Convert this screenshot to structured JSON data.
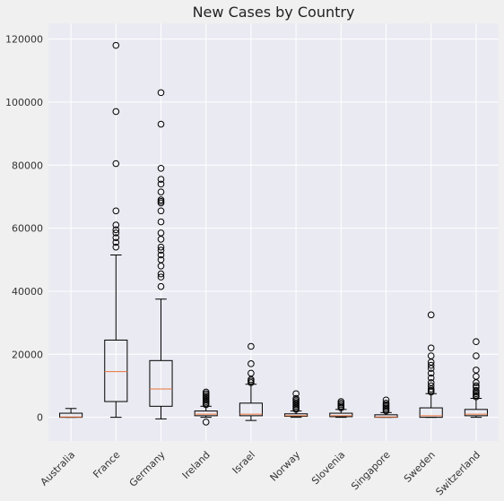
{
  "chart_data": {
    "type": "box",
    "title": "New Cases by Country",
    "xlabel": "",
    "ylabel": "",
    "ylim": [
      -7500,
      125000
    ],
    "yticks": [
      0,
      20000,
      40000,
      60000,
      80000,
      100000,
      120000
    ],
    "ytick_labels": [
      "0",
      "20000",
      "40000",
      "60000",
      "80000",
      "100000",
      "120000"
    ],
    "grid": true,
    "colors": {
      "background": "#eaeaf2",
      "figure": "#f0f0f0",
      "grid": "#ffffff",
      "box": "#000000",
      "median": "#e8743b"
    },
    "categories": [
      "Australia",
      "France",
      "Germany",
      "Ireland",
      "Israel",
      "Norway",
      "Slovenia",
      "Singapore",
      "Sweden",
      "Switzerland"
    ],
    "boxes": [
      {
        "name": "Australia",
        "whislo": 0,
        "q1": 0,
        "med": 100,
        "q3": 1300,
        "whishi": 2800,
        "fliers": []
      },
      {
        "name": "France",
        "whislo": 0,
        "q1": 5000,
        "med": 14500,
        "q3": 24500,
        "whishi": 51500,
        "fliers": [
          54000,
          55500,
          57000,
          58500,
          59500,
          61000,
          65500,
          80500,
          97000,
          118000
        ]
      },
      {
        "name": "Germany",
        "whislo": -500,
        "q1": 3500,
        "med": 9000,
        "q3": 18000,
        "whishi": 37500,
        "fliers": [
          41500,
          44500,
          45500,
          48000,
          50000,
          51500,
          53000,
          54000,
          56500,
          58500,
          62000,
          65500,
          68000,
          68500,
          69000,
          71500,
          74000,
          75500,
          79000,
          93000,
          103000
        ]
      },
      {
        "name": "Ireland",
        "whislo": 0,
        "q1": 500,
        "med": 1000,
        "q3": 2000,
        "whishi": 3500,
        "fliers": [
          -1500,
          4000,
          4500,
          5000,
          5500,
          6000,
          6500,
          7000,
          7500,
          8000
        ]
      },
      {
        "name": "Israel",
        "whislo": -1000,
        "q1": 500,
        "med": 1000,
        "q3": 4500,
        "whishi": 10500,
        "fliers": [
          11000,
          11500,
          12000,
          14000,
          17000,
          22500
        ]
      },
      {
        "name": "Norway",
        "whislo": 0,
        "q1": 300,
        "med": 500,
        "q3": 1100,
        "whishi": 2000,
        "fliers": [
          2500,
          3000,
          3500,
          4000,
          4500,
          5000,
          5500,
          6000,
          7500
        ]
      },
      {
        "name": "Slovenia",
        "whislo": 0,
        "q1": 200,
        "med": 500,
        "q3": 1300,
        "whishi": 2500,
        "fliers": [
          3000,
          3500,
          4000,
          4500,
          5000
        ]
      },
      {
        "name": "Singapore",
        "whislo": 0,
        "q1": 0,
        "med": 100,
        "q3": 800,
        "whishi": 1500,
        "fliers": [
          2000,
          2500,
          3000,
          3500,
          4000,
          4500,
          5500
        ]
      },
      {
        "name": "Sweden",
        "whislo": 0,
        "q1": 0,
        "med": 500,
        "q3": 3000,
        "whishi": 7500,
        "fliers": [
          8000,
          8500,
          9000,
          10000,
          11000,
          12500,
          14000,
          15500,
          16500,
          17500,
          19500,
          22000,
          32500
        ]
      },
      {
        "name": "Switzerland",
        "whislo": 0,
        "q1": 500,
        "med": 1000,
        "q3": 2500,
        "whishi": 6000,
        "fliers": [
          6500,
          7000,
          7500,
          8000,
          8500,
          9500,
          10000,
          11000,
          13000,
          15000,
          19500,
          24000
        ]
      }
    ]
  }
}
